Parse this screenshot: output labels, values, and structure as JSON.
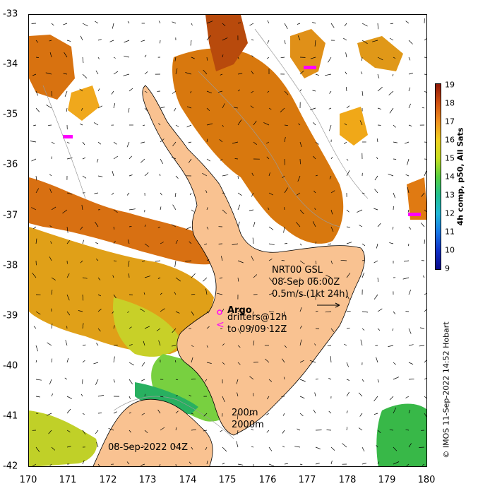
{
  "map": {
    "x_ticks": [
      "170",
      "171",
      "172",
      "173",
      "174",
      "175",
      "176",
      "177",
      "178",
      "179",
      "180"
    ],
    "y_ticks": [
      "-33",
      "-34",
      "-35",
      "-36",
      "-37",
      "-38",
      "-39",
      "-40",
      "-41",
      "-42"
    ],
    "lon_range": [
      170,
      180
    ],
    "lat_range": [
      -42,
      -33
    ],
    "land_color": "#f9c291",
    "drifter_color": "#ff00ff"
  },
  "labels": {
    "nrt_line1": "NRT00 GSL",
    "nrt_line2": "08-Sep 06:00Z",
    "nrt_line3": "0.5m/s (1kt 24h)",
    "argo": "Argo",
    "drifters_line1": "drifters@12h",
    "drifters_line2": "to 09/09 12Z",
    "contour_200": "200m",
    "contour_2000": "2000m",
    "date": "08-Sep-2022 04Z"
  },
  "colorbar": {
    "label": "4h comp, p50, All Sats",
    "ticks": [
      "19",
      "18",
      "17",
      "16",
      "15",
      "14",
      "13",
      "12",
      "11",
      "10",
      "9"
    ]
  },
  "credit": "© IMOS 11-Sep-2022 14:52 Hobart"
}
